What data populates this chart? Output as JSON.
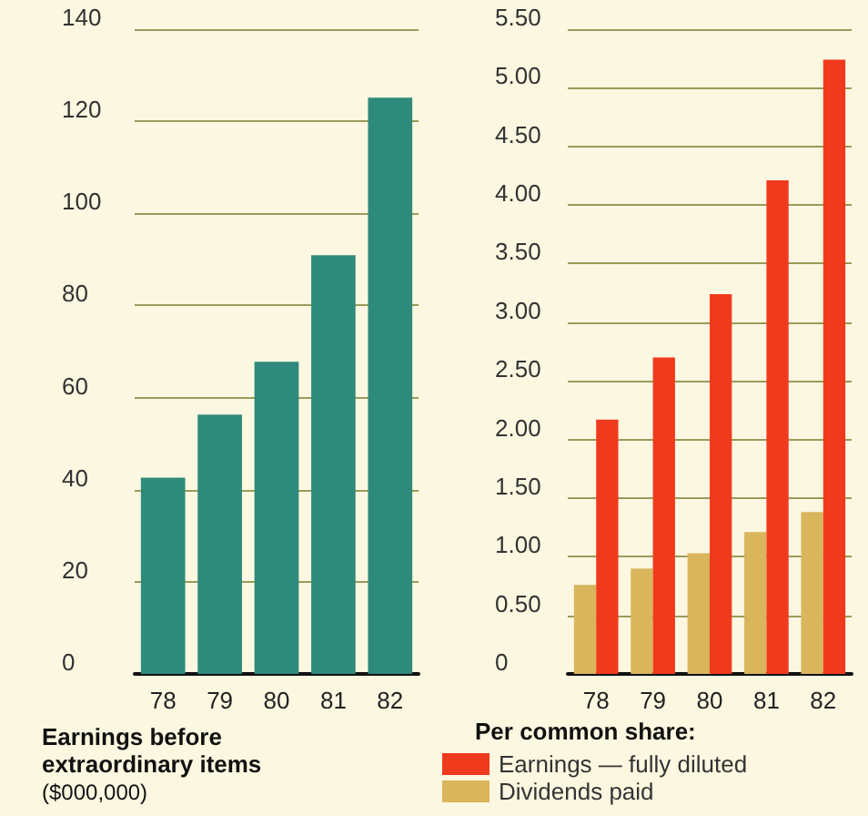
{
  "chart_data": [
    {
      "type": "bar",
      "title": "Earnings before extraordinary items",
      "subtitle": "($000,000)",
      "categories": [
        "78",
        "79",
        "80",
        "81",
        "82"
      ],
      "series": [
        {
          "color": "#2e8a7a",
          "values": [
            42.6,
            56.3,
            67.8,
            90.9,
            125.1
          ]
        }
      ],
      "ylim": [
        0,
        140
      ],
      "yticks": [
        0,
        20,
        40,
        60,
        80,
        100,
        120,
        140
      ],
      "grid": "y"
    },
    {
      "type": "bar",
      "title": "Per common share:",
      "categories": [
        "78",
        "79",
        "80",
        "81",
        "82"
      ],
      "series": [
        {
          "name": "Dividends paid",
          "color": "#d9b55c",
          "values": [
            0.76,
            0.9,
            1.03,
            1.21,
            1.38
          ]
        },
        {
          "name": "Earnings — fully diluted",
          "color": "#f03a1e",
          "values": [
            2.17,
            2.7,
            3.24,
            4.21,
            5.24
          ]
        }
      ],
      "ylim": [
        0,
        5.5
      ],
      "yticks": [
        0,
        {
          "value": 0.5,
          "label": "0.50"
        },
        {
          "value": 1,
          "label": "1.00"
        },
        {
          "value": 1.5,
          "label": "1.50"
        },
        {
          "value": 2,
          "label": "2.00"
        },
        {
          "value": 2.5,
          "label": "2.50"
        },
        {
          "value": 3,
          "label": "3.00"
        },
        {
          "value": 3.5,
          "label": "3.50"
        },
        {
          "value": 4,
          "label": "4.00"
        },
        {
          "value": 4.5,
          "label": "4.50"
        },
        {
          "value": 5,
          "label": "5.00"
        },
        {
          "value": 5.5,
          "label": "5.50"
        }
      ],
      "grid": "y",
      "legend": "bottom left"
    }
  ]
}
